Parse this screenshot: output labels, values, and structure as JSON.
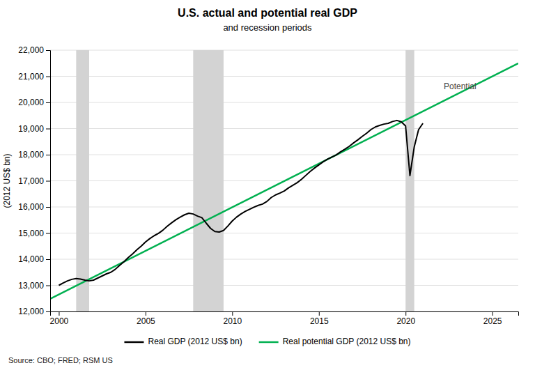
{
  "chart_data": {
    "type": "line",
    "title": "U.S. actual and potential real GDP",
    "subtitle": "and recession periods",
    "ylabel": "(2012 US$ bn)",
    "source": "Source: CBO; FRED; RSM US",
    "xlim": [
      1999.5,
      2026.5
    ],
    "ylim": [
      12000,
      22000
    ],
    "xticks": [
      2000,
      2005,
      2010,
      2015,
      2020,
      2025
    ],
    "yticks": [
      {
        "value": 12000,
        "label": "12,000"
      },
      {
        "value": 13000,
        "label": "13,000"
      },
      {
        "value": 14000,
        "label": "14,000"
      },
      {
        "value": 15000,
        "label": "15,000"
      },
      {
        "value": 16000,
        "label": "16,000"
      },
      {
        "value": 17000,
        "label": "17,000"
      },
      {
        "value": 18000,
        "label": "18,000"
      },
      {
        "value": 19000,
        "label": "19,000"
      },
      {
        "value": 20000,
        "label": "20,000"
      },
      {
        "value": 21000,
        "label": "21,000"
      },
      {
        "value": 22000,
        "label": "22,000"
      }
    ],
    "grid": true,
    "legend": "bottom",
    "recessions": {
      "periods": [
        [
          2001.0,
          2001.75
        ],
        [
          2007.75,
          2009.5
        ],
        [
          2020.0,
          2020.5
        ]
      ],
      "color": "#d3d3d3"
    },
    "annotations": [
      {
        "text": "Potential",
        "x": 2022.2,
        "y": 20600
      }
    ],
    "series": [
      {
        "name": "Real GDP (2012 US$ bn)",
        "color": "#000000",
        "x": [
          2000.0,
          2000.25,
          2000.5,
          2000.75,
          2001.0,
          2001.25,
          2001.5,
          2001.75,
          2002.0,
          2002.25,
          2002.5,
          2002.75,
          2003.0,
          2003.25,
          2003.5,
          2003.75,
          2004.0,
          2004.25,
          2004.5,
          2004.75,
          2005.0,
          2005.25,
          2005.5,
          2005.75,
          2006.0,
          2006.25,
          2006.5,
          2006.75,
          2007.0,
          2007.25,
          2007.5,
          2007.75,
          2008.0,
          2008.25,
          2008.5,
          2008.75,
          2009.0,
          2009.25,
          2009.5,
          2009.75,
          2010.0,
          2010.25,
          2010.5,
          2010.75,
          2011.0,
          2011.25,
          2011.5,
          2011.75,
          2012.0,
          2012.25,
          2012.5,
          2012.75,
          2013.0,
          2013.25,
          2013.5,
          2013.75,
          2014.0,
          2014.25,
          2014.5,
          2014.75,
          2015.0,
          2015.25,
          2015.5,
          2015.75,
          2016.0,
          2016.25,
          2016.5,
          2016.75,
          2017.0,
          2017.25,
          2017.5,
          2017.75,
          2018.0,
          2018.25,
          2018.5,
          2018.75,
          2019.0,
          2019.25,
          2019.5,
          2019.75,
          2020.0,
          2020.25,
          2020.5,
          2020.75,
          2021.0
        ],
        "values": [
          13000,
          13090,
          13170,
          13230,
          13260,
          13240,
          13200,
          13170,
          13200,
          13280,
          13360,
          13440,
          13500,
          13610,
          13760,
          13900,
          14060,
          14200,
          14360,
          14500,
          14660,
          14790,
          14900,
          14990,
          15110,
          15260,
          15390,
          15510,
          15610,
          15700,
          15760,
          15730,
          15650,
          15590,
          15380,
          15180,
          15060,
          15040,
          15100,
          15270,
          15460,
          15610,
          15730,
          15830,
          15910,
          15990,
          16060,
          16110,
          16210,
          16360,
          16460,
          16530,
          16610,
          16730,
          16830,
          16930,
          17060,
          17210,
          17360,
          17490,
          17610,
          17730,
          17830,
          17910,
          17990,
          18110,
          18210,
          18320,
          18450,
          18570,
          18700,
          18820,
          18960,
          19060,
          19120,
          19170,
          19200,
          19270,
          19310,
          19260,
          19100,
          17200,
          18300,
          18960,
          19200
        ]
      },
      {
        "name": "Real potential GDP (2012 US$ bn)",
        "color": "#00b050",
        "x": [
          1999.5,
          2026.5
        ],
        "values": [
          12480,
          21500
        ]
      }
    ]
  }
}
